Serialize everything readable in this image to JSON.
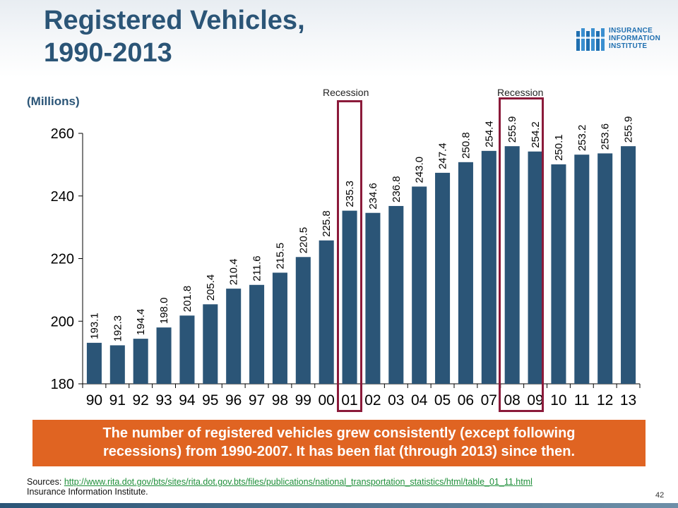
{
  "slide": {
    "title_line1": "Registered Vehicles,",
    "title_line2": "1990-2013",
    "units": "(Millions)",
    "page_number": "42"
  },
  "logo": {
    "line1": "INSURANCE",
    "line2": "INFORMATION",
    "line3": "INSTITUTE"
  },
  "recessions": [
    {
      "label": "Recession"
    },
    {
      "label": "Recession"
    }
  ],
  "callout": {
    "line1": "The number of registered vehicles grew consistently (except following",
    "line2": "recessions) from 1990-2007. It has been flat (through 2013) since then."
  },
  "sources": {
    "prefix": "Sources: ",
    "url": "http://www.rita.dot.gov/bts/sites/rita.dot.gov.bts/files/publications/national_transportation_statistics/html/table_01_11.html",
    "line2": "Insurance Information Institute."
  },
  "colors": {
    "bar": "#2b5577",
    "title": "#2b5577",
    "callout_bg": "#e06422",
    "recession_box": "#8b1a3a"
  },
  "chart_data": {
    "type": "bar",
    "title": "",
    "xlabel": "",
    "ylabel": "",
    "ylim": [
      180,
      260
    ],
    "yticks": [
      180,
      200,
      220,
      240,
      260
    ],
    "categories": [
      "90",
      "91",
      "92",
      "93",
      "94",
      "95",
      "96",
      "97",
      "98",
      "99",
      "00",
      "01",
      "02",
      "03",
      "04",
      "05",
      "06",
      "07",
      "08",
      "09",
      "10",
      "11",
      "12",
      "13"
    ],
    "values": [
      193.1,
      192.3,
      194.4,
      198.0,
      201.8,
      205.4,
      210.4,
      211.6,
      215.5,
      220.5,
      225.8,
      235.3,
      234.6,
      236.8,
      243.0,
      247.4,
      250.8,
      254.4,
      255.9,
      254.2,
      250.1,
      253.2,
      253.6,
      255.9
    ],
    "value_labels": [
      "193.1",
      "192.3",
      "194.4",
      "198.0",
      "201.8",
      "205.4",
      "210.4",
      "211.6",
      "215.5",
      "220.5",
      "225.8",
      "235.3",
      "234.6",
      "236.8",
      "243.0",
      "247.4",
      "250.8",
      "254.4",
      "255.9",
      "254.2",
      "250.1",
      "253.2",
      "253.6",
      "255.9"
    ],
    "grid": false,
    "legend": "none"
  }
}
